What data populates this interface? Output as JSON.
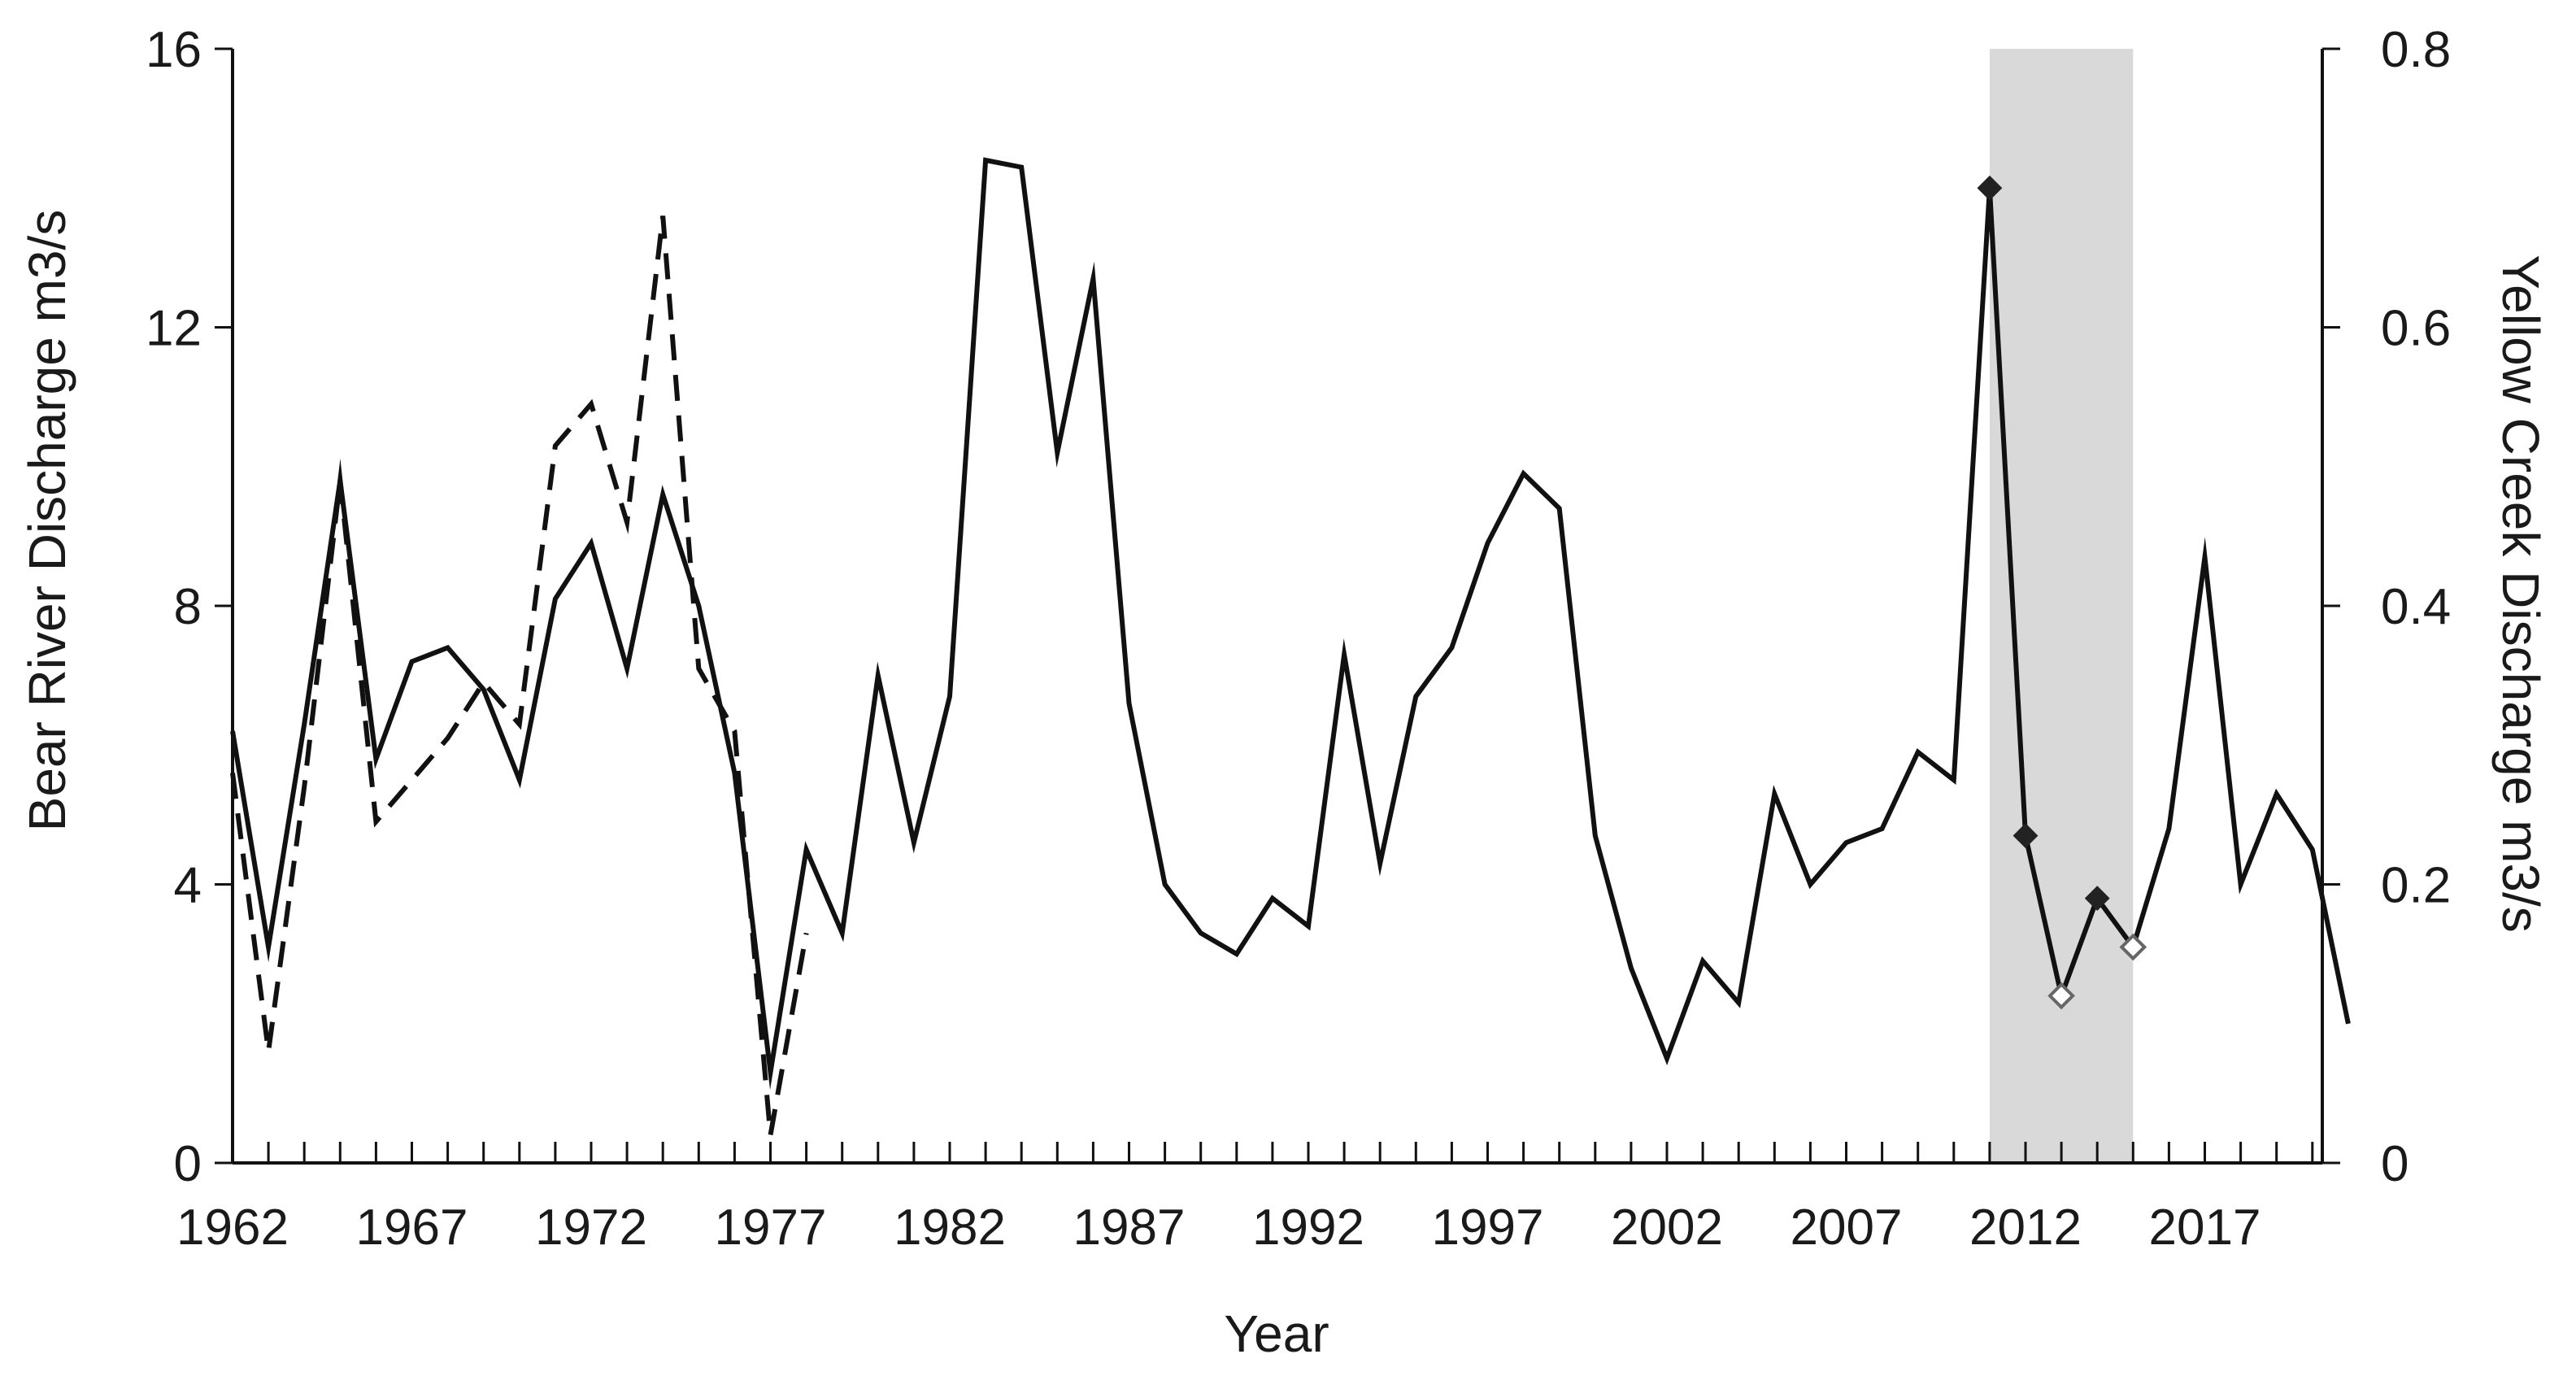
{
  "chart_data": {
    "type": "line",
    "xlabel": "Year",
    "ylabel": "Bear River Discharge m3/s",
    "ylabel_right": "Yellow Creek Discharge m3/s",
    "xlim": [
      1962,
      2022
    ],
    "ylim": [
      0,
      16
    ],
    "ylim_right": [
      0,
      0.8
    ],
    "x_ticks": [
      1962,
      1967,
      1972,
      1977,
      1982,
      1987,
      1992,
      1997,
      2002,
      2007,
      2012,
      2017
    ],
    "y_ticks": [
      0,
      4,
      8,
      12,
      16
    ],
    "y_ticks_right": [
      0,
      0.2,
      0.4,
      0.6,
      0.8
    ],
    "grid": false,
    "legend": "none",
    "shaded_region": {
      "x_start": 2011,
      "x_end": 2015,
      "color": "#d9d9d9"
    },
    "series": [
      {
        "axis": "left",
        "style": "solid",
        "color": "#111111",
        "x": [
          1962,
          1963,
          1964,
          1965,
          1966,
          1967,
          1968,
          1969,
          1970,
          1971,
          1972,
          1973,
          1974,
          1975,
          1976,
          1977,
          1978,
          1979,
          1980,
          1981,
          1982,
          1983,
          1984,
          1985,
          1986,
          1987,
          1988,
          1989,
          1990,
          1991,
          1992,
          1993,
          1994,
          1995,
          1996,
          1997,
          1998,
          1999,
          2000,
          2001,
          2002,
          2003,
          2004,
          2005,
          2006,
          2007,
          2008,
          2009,
          2010,
          2011,
          2012,
          2013,
          2014,
          2015,
          2016,
          2017,
          2018,
          2019,
          2020,
          2021
        ],
        "y": [
          6.2,
          3.1,
          6.3,
          9.8,
          5.8,
          7.2,
          7.4,
          6.8,
          5.5,
          8.1,
          8.9,
          7.1,
          9.6,
          8.0,
          5.6,
          1.3,
          4.5,
          3.3,
          7.0,
          4.6,
          6.7,
          14.4,
          14.3,
          10.2,
          12.7,
          6.6,
          4.0,
          3.3,
          3.0,
          3.8,
          3.4,
          7.3,
          4.3,
          6.7,
          7.4,
          8.9,
          9.9,
          9.4,
          4.7,
          2.8,
          1.5,
          2.9,
          2.3,
          5.3,
          4.0,
          4.6,
          4.8,
          5.9,
          5.5,
          14.0,
          4.7,
          2.4,
          3.8,
          3.1,
          4.8,
          8.7,
          4.0,
          5.3,
          4.5,
          2.0
        ]
      },
      {
        "axis": "right",
        "style": "dashed",
        "color": "#111111",
        "x": [
          1962,
          1963,
          1964,
          1965,
          1966,
          1967,
          1968,
          1969,
          1970,
          1971,
          1972,
          1973,
          1974,
          1975,
          1976,
          1977,
          1978
        ],
        "y": [
          0.28,
          0.08,
          0.27,
          0.49,
          0.245,
          0.275,
          0.305,
          0.345,
          0.315,
          0.515,
          0.545,
          0.46,
          0.68,
          0.355,
          0.31,
          0.02,
          0.165
        ]
      },
      {
        "axis": "left",
        "style": "markers",
        "color": "#111111",
        "x": [
          2011,
          2012,
          2013,
          2014,
          2015
        ],
        "y": [
          14.0,
          4.7,
          2.4,
          3.8,
          3.1
        ],
        "markers": [
          "filled",
          "filled",
          "open",
          "filled",
          "open"
        ]
      }
    ]
  }
}
